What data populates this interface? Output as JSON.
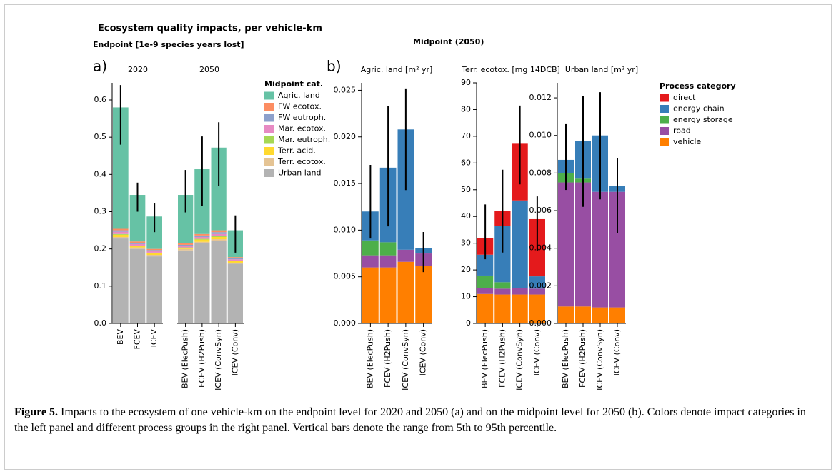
{
  "figure": {
    "title": "Ecosystem quality impacts, per vehicle-km",
    "endpoint_label": "Endpoint [1e-9 species years lost]",
    "midpoint_label": "Midpoint (2050)",
    "panel_a_label": "a)",
    "panel_b_label": "b)",
    "caption_label": "Figure 5.",
    "caption": "Impacts to the ecosystem of one vehicle-km on the endpoint level for 2020 and 2050 (a) and on the midpoint level for 2050 (b). Colors denote impact categories in the left panel and different process groups in the right panel. Vertical bars denote the range from 5th to 95th percentile."
  },
  "chart_data": [
    {
      "type": "bar",
      "stacked": true,
      "title": "2020",
      "legend_title": "Midpoint cat.",
      "categories": [
        "BEV",
        "FCEV",
        "ICEV"
      ],
      "series": [
        {
          "name": "Agric. land",
          "color": "#66c2a5",
          "values": [
            0.326,
            0.125,
            0.087
          ]
        },
        {
          "name": "FW ecotox.",
          "color": "#fc8d62",
          "values": [
            0.004,
            0.004,
            0.003
          ]
        },
        {
          "name": "FW eutroph.",
          "color": "#8da0cb",
          "values": [
            0.004,
            0.003,
            0.003
          ]
        },
        {
          "name": "Mar. ecotox.",
          "color": "#e78ac3",
          "values": [
            0.006,
            0.004,
            0.004
          ]
        },
        {
          "name": "Mar. eutroph.",
          "color": "#a6d854",
          "values": [
            0.002,
            0.001,
            0.001
          ]
        },
        {
          "name": "Terr. acid.",
          "color": "#ffd92f",
          "values": [
            0.006,
            0.004,
            0.005
          ]
        },
        {
          "name": "Terr. ecotox.",
          "color": "#e5c494",
          "values": [
            0.004,
            0.004,
            0.004
          ]
        },
        {
          "name": "Urban land",
          "color": "#b3b3b3",
          "values": [
            0.228,
            0.2,
            0.18
          ]
        }
      ],
      "error_low": [
        0.48,
        0.3,
        0.245
      ],
      "error_high": [
        0.64,
        0.378,
        0.322
      ],
      "ylim": [
        0,
        0.646
      ],
      "yticks": [
        {
          "value": 0,
          "label": "0.0"
        },
        0.1,
        0.2,
        0.3,
        0.4,
        0.5,
        0.6
      ]
    },
    {
      "type": "bar",
      "stacked": true,
      "title": "2050",
      "categories": [
        "BEV (ElecPush)",
        "FCEV (H2Push)",
        "ICEV (ConvSyn)",
        "ICEV (Conv)"
      ],
      "series": [
        {
          "name": "Agric. land",
          "color": "#66c2a5",
          "values": [
            0.13,
            0.174,
            0.222,
            0.072
          ]
        },
        {
          "name": "FW ecotox.",
          "color": "#fc8d62",
          "values": [
            0.004,
            0.004,
            0.005,
            0.003
          ]
        },
        {
          "name": "FW eutroph.",
          "color": "#8da0cb",
          "values": [
            0.003,
            0.004,
            0.005,
            0.003
          ]
        },
        {
          "name": "Mar. ecotox.",
          "color": "#e78ac3",
          "values": [
            0.004,
            0.005,
            0.006,
            0.004
          ]
        },
        {
          "name": "Mar. eutroph.",
          "color": "#a6d854",
          "values": [
            0.001,
            0.002,
            0.002,
            0.001
          ]
        },
        {
          "name": "Terr. acid.",
          "color": "#ffd92f",
          "values": [
            0.003,
            0.006,
            0.006,
            0.004
          ]
        },
        {
          "name": "Terr. ecotox.",
          "color": "#e5c494",
          "values": [
            0.004,
            0.004,
            0.004,
            0.003
          ]
        },
        {
          "name": "Urban land",
          "color": "#b3b3b3",
          "values": [
            0.196,
            0.215,
            0.222,
            0.16
          ]
        }
      ],
      "error_low": [
        0.298,
        0.315,
        0.37,
        0.19
      ],
      "error_high": [
        0.412,
        0.502,
        0.54,
        0.29
      ],
      "ylim": [
        0,
        0.646
      ]
    },
    {
      "type": "bar",
      "stacked": true,
      "title": "Agric. land [m² yr]",
      "categories": [
        "BEV (ElecPush)",
        "FCEV (H2Push)",
        "ICEV (ConvSyn)",
        "ICEV (Conv)"
      ],
      "series": [
        {
          "name": "direct",
          "color": "#e41a1c",
          "values": [
            0,
            0,
            0,
            0
          ]
        },
        {
          "name": "energy chain",
          "color": "#377eb8",
          "values": [
            0.0031,
            0.008,
            0.0129,
            0.0006
          ]
        },
        {
          "name": "energy storage",
          "color": "#4daf4a",
          "values": [
            0.0016,
            0.0014,
            0,
            0
          ]
        },
        {
          "name": "road",
          "color": "#984ea3",
          "values": [
            0.0013,
            0.0013,
            0.0013,
            0.0013
          ]
        },
        {
          "name": "vehicle",
          "color": "#ff7f00",
          "values": [
            0.006,
            0.006,
            0.0066,
            0.0062
          ]
        }
      ],
      "error_low": [
        0.0091,
        0.0104,
        0.0143,
        0.0055
      ],
      "error_high": [
        0.017,
        0.0233,
        0.0252,
        0.0098
      ],
      "ylim": [
        0,
        0.0258
      ],
      "yticks": [
        {
          "value": 0,
          "label": "0.000"
        },
        {
          "value": 0.005,
          "label": "0.005"
        },
        {
          "value": 0.01,
          "label": "0.010"
        },
        {
          "value": 0.015,
          "label": "0.015"
        },
        {
          "value": 0.02,
          "label": "0.020"
        },
        {
          "value": 0.025,
          "label": "0.025"
        }
      ]
    },
    {
      "type": "bar",
      "stacked": true,
      "title": "Terr. ecotox. [mg 14DCB]",
      "categories": [
        "BEV (ElecPush)",
        "FCEV (H2Push)",
        "ICEV (ConvSyn)",
        "ICEV (Conv)"
      ],
      "series": [
        {
          "name": "direct",
          "color": "#e41a1c",
          "values": [
            6.3,
            5.6,
            21.2,
            21.4
          ]
        },
        {
          "name": "energy chain",
          "color": "#377eb8",
          "values": [
            7.8,
            21,
            32.9,
            4.6
          ]
        },
        {
          "name": "energy storage",
          "color": "#4daf4a",
          "values": [
            4.6,
            2.4,
            0,
            0
          ]
        },
        {
          "name": "road",
          "color": "#984ea3",
          "values": [
            2.3,
            2.2,
            2.3,
            2.2
          ]
        },
        {
          "name": "vehicle",
          "color": "#ff7f00",
          "values": [
            11,
            10.8,
            10.8,
            10.8
          ]
        }
      ],
      "error_low": [
        24,
        26.5,
        52,
        27
      ],
      "error_high": [
        44.5,
        57.5,
        81.5,
        47.5
      ],
      "ylim": [
        0,
        90
      ],
      "yticks": [
        0,
        10,
        20,
        30,
        40,
        50,
        60,
        70,
        80,
        90
      ]
    },
    {
      "type": "bar",
      "stacked": true,
      "title": "Urban land [m² yr]",
      "legend_title": "Process category",
      "categories": [
        "BEV (ElecPush)",
        "FCEV (H2Push)",
        "ICEV (ConvSyn)",
        "ICEV (Conv)"
      ],
      "series": [
        {
          "name": "direct",
          "color": "#e41a1c",
          "values": [
            0,
            0,
            0,
            0
          ]
        },
        {
          "name": "energy chain",
          "color": "#377eb8",
          "values": [
            0.0007,
            0.002,
            0.003,
            0.0003
          ]
        },
        {
          "name": "energy storage",
          "color": "#4daf4a",
          "values": [
            0.0005,
            0.0002,
            0,
            0
          ]
        },
        {
          "name": "road",
          "color": "#984ea3",
          "values": [
            0.0066,
            0.0066,
            0.00615,
            0.00615
          ]
        },
        {
          "name": "vehicle",
          "color": "#ff7f00",
          "values": [
            0.0009,
            0.0009,
            0.00085,
            0.00085
          ]
        }
      ],
      "error_low": [
        0.0071,
        0.0062,
        0.0066,
        0.0048
      ],
      "error_high": [
        0.0106,
        0.0121,
        0.0123,
        0.0088
      ],
      "ylim": [
        0,
        0.0128
      ],
      "yticks": [
        {
          "value": 0,
          "label": "0.000"
        },
        {
          "value": 0.002,
          "label": "0.002"
        },
        {
          "value": 0.004,
          "label": "0.004"
        },
        {
          "value": 0.006,
          "label": "0.006"
        },
        {
          "value": 0.008,
          "label": "0.008"
        },
        {
          "value": 0.01,
          "label": "0.010"
        },
        {
          "value": 0.012,
          "label": "0.012"
        }
      ]
    }
  ]
}
